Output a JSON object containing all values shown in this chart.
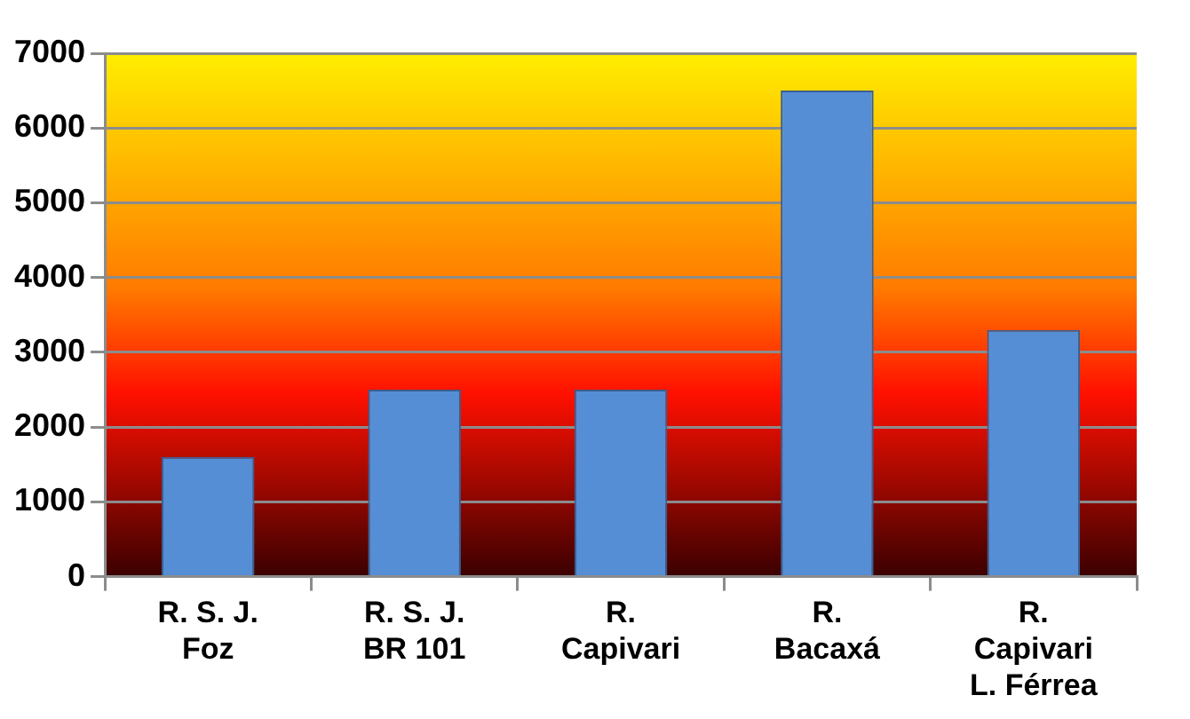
{
  "chart_data": {
    "type": "bar",
    "categories": [
      "R. S. J.\nFoz",
      "R. S. J.\nBR 101",
      "R.\nCapivari",
      "R.\nBacaxá",
      "R.\nCapivari\nL. Férrea"
    ],
    "values": [
      1600,
      2500,
      2500,
      6500,
      3300
    ],
    "color": "#558ed5",
    "ylim": [
      0,
      7000
    ],
    "yticks": [
      0,
      1000,
      2000,
      3000,
      4000,
      5000,
      6000,
      7000
    ],
    "grid": true,
    "legend": false
  }
}
